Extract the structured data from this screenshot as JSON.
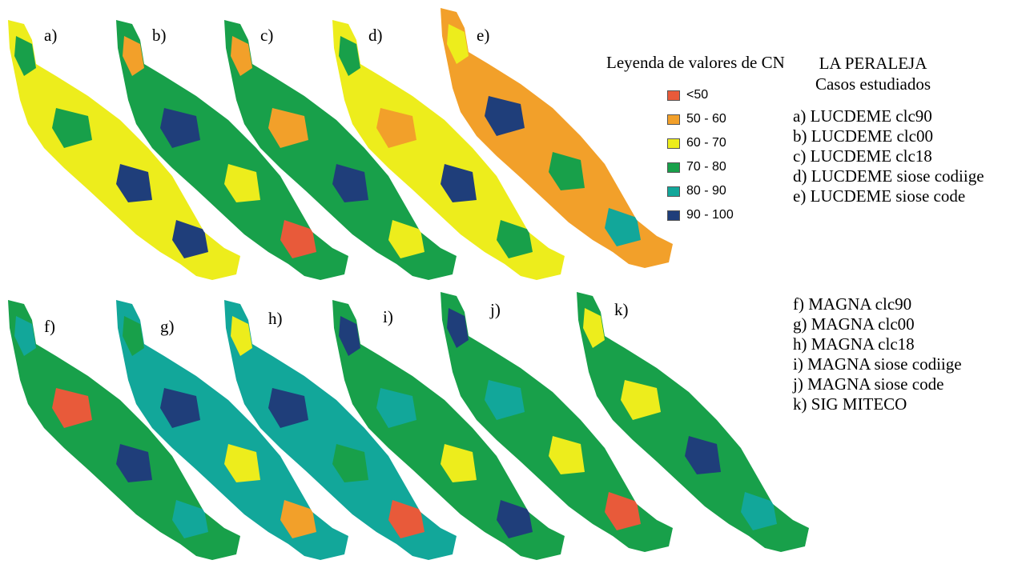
{
  "panels": [
    {
      "label": "a)",
      "fill": "#eded1c",
      "patches": [
        "#18a04a",
        "#1f3e7a",
        "#18a04a",
        "#1f3e7a"
      ]
    },
    {
      "label": "b)",
      "fill": "#18a04a",
      "patches": [
        "#f2a02a",
        "#eded1c",
        "#1f3e7a",
        "#e85a3a"
      ]
    },
    {
      "label": "c)",
      "fill": "#18a04a",
      "patches": [
        "#f2a02a",
        "#1f3e7a",
        "#f2a02a",
        "#eded1c"
      ]
    },
    {
      "label": "d)",
      "fill": "#eded1c",
      "patches": [
        "#18a04a",
        "#1f3e7a",
        "#f2a02a",
        "#18a04a"
      ]
    },
    {
      "label": "e)",
      "fill": "#f2a02a",
      "patches": [
        "#eded1c",
        "#18a04a",
        "#1f3e7a",
        "#12a79a"
      ]
    },
    {
      "label": "f)",
      "fill": "#18a04a",
      "patches": [
        "#12a79a",
        "#1f3e7a",
        "#e85a3a",
        "#12a79a"
      ]
    },
    {
      "label": "g)",
      "fill": "#12a79a",
      "patches": [
        "#18a04a",
        "#eded1c",
        "#1f3e7a",
        "#f2a02a"
      ]
    },
    {
      "label": "h)",
      "fill": "#12a79a",
      "patches": [
        "#eded1c",
        "#18a04a",
        "#1f3e7a",
        "#e85a3a"
      ]
    },
    {
      "label": "i)",
      "fill": "#18a04a",
      "patches": [
        "#1f3e7a",
        "#eded1c",
        "#12a79a",
        "#1f3e7a"
      ]
    },
    {
      "label": "j)",
      "fill": "#18a04a",
      "patches": [
        "#1f3e7a",
        "#eded1c",
        "#12a79a",
        "#e85a3a"
      ]
    },
    {
      "label": "k)",
      "fill": "#18a04a",
      "patches": [
        "#eded1c",
        "#1f3e7a",
        "#eded1c",
        "#12a79a"
      ]
    }
  ],
  "legend": {
    "title": "Leyenda de valores de CN",
    "items": [
      {
        "label": "<50",
        "color": "#e85a3a"
      },
      {
        "label": "50 - 60",
        "color": "#f2a02a"
      },
      {
        "label": "60 - 70",
        "color": "#eded1c"
      },
      {
        "label": "70 - 80",
        "color": "#18a04a"
      },
      {
        "label": "80 - 90",
        "color": "#12a79a"
      },
      {
        "label": "90 - 100",
        "color": "#1f3e7a"
      }
    ]
  },
  "title": {
    "line1": "LA PERALEJA",
    "line2": "Casos estudiados"
  },
  "cases_lucdeme": [
    "a) LUCDEME clc90",
    "b) LUCDEME clc00",
    "c) LUCDEME clc18",
    "d) LUCDEME siose codiige",
    "e) LUCDEME siose code"
  ],
  "cases_magna": [
    "f) MAGNA clc90",
    "g) MAGNA clc00",
    "h) MAGNA clc18",
    "i) MAGNA siose codiige",
    "j) MAGNA siose code",
    "k) SIG MITECO"
  ]
}
